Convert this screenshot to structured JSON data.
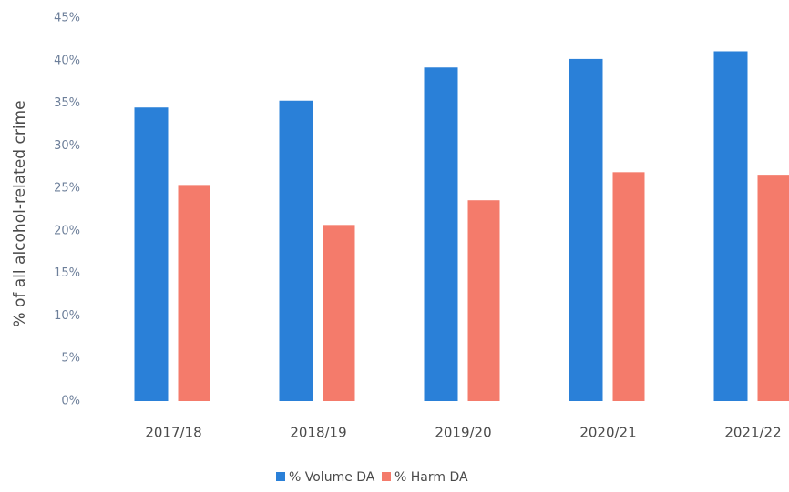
{
  "chart_data": {
    "type": "bar",
    "y_label": "% of all alcohol-related crime",
    "categories": [
      "2017/18",
      "2018/19",
      "2019/20",
      "2020/21",
      "2021/22"
    ],
    "series": [
      {
        "name": "% Volume DA",
        "color": "#2a80d8",
        "values": [
          34.5,
          35.3,
          39.2,
          40.2,
          41.1
        ]
      },
      {
        "name": "% Harm DA",
        "color": "#f47b6b",
        "values": [
          25.4,
          20.7,
          23.6,
          26.9,
          26.6
        ]
      }
    ],
    "ylim": [
      0,
      45
    ],
    "yticks": [
      {
        "value": 0,
        "label": "0%"
      },
      {
        "value": 5,
        "label": "5%"
      },
      {
        "value": 10,
        "label": "10%"
      },
      {
        "value": 15,
        "label": "15%"
      },
      {
        "value": 20,
        "label": "20%"
      },
      {
        "value": 25,
        "label": "25%"
      },
      {
        "value": 30,
        "label": "30%"
      },
      {
        "value": 35,
        "label": "35%"
      },
      {
        "value": 40,
        "label": "40%"
      },
      {
        "value": 45,
        "label": "45%"
      }
    ],
    "grid": false,
    "legend": "bottom"
  }
}
